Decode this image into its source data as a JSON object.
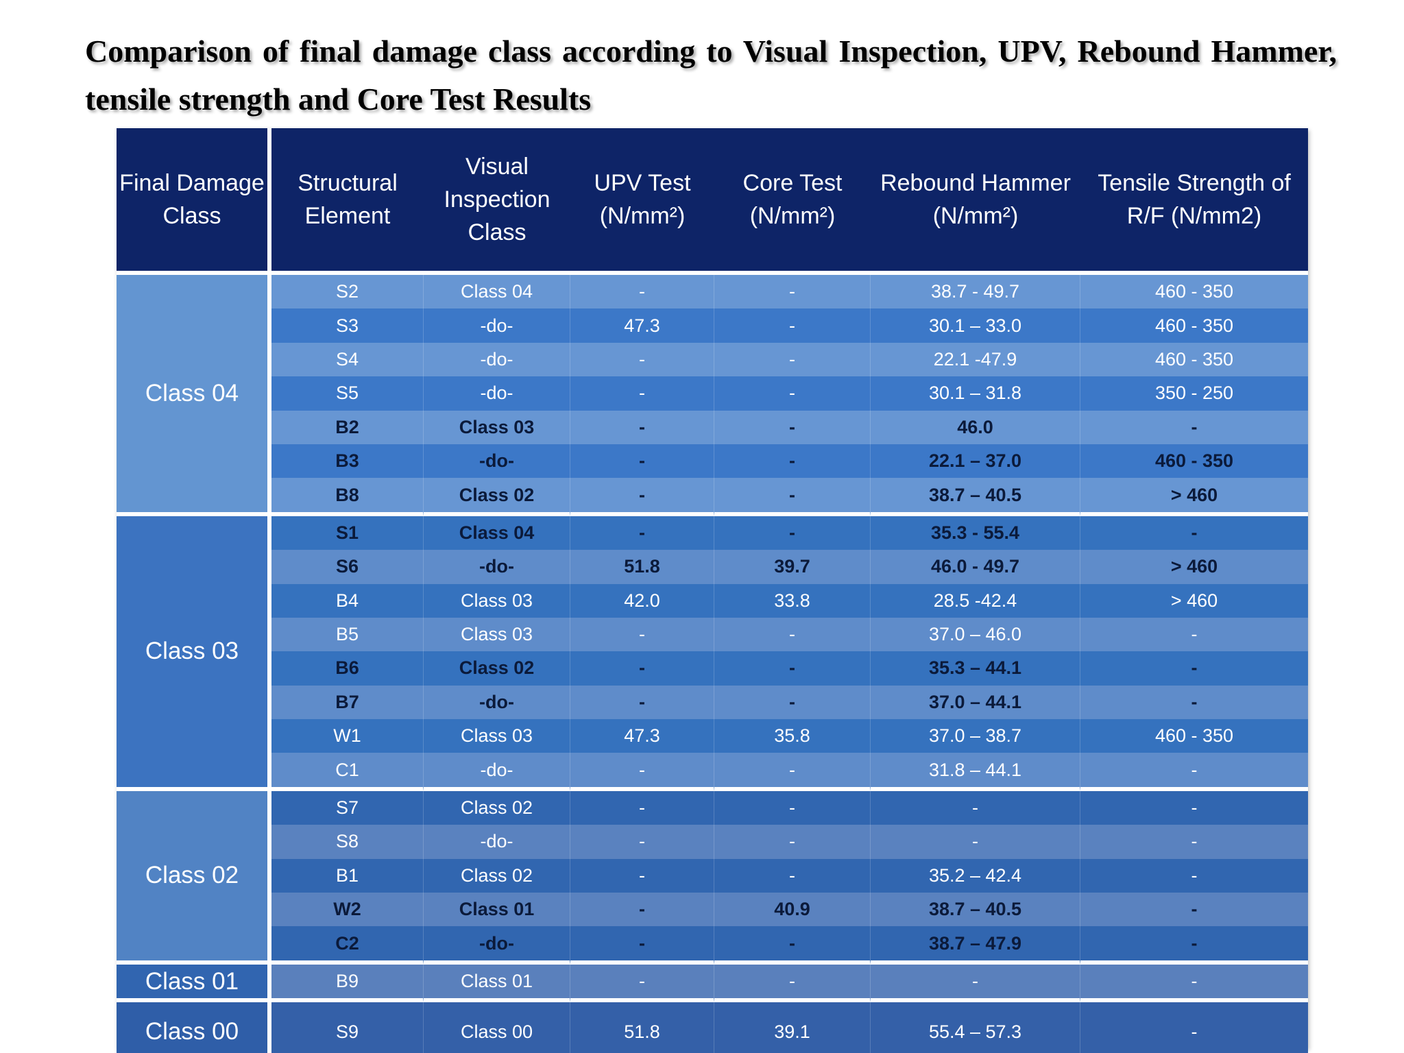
{
  "title": "Comparison of final damage class according to Visual Inspection, UPV, Rebound Hammer, tensile strength and Core Test Results",
  "headers": {
    "final_damage_class": "Final Damage Class",
    "structural_element": "Structural Element",
    "visual_inspection_class": "Visual Inspection Class",
    "upv_test": "UPV Test (N/mm²)",
    "core_test": "Core Test (N/mm²)",
    "rebound_hammer": "Rebound Hammer (N/mm²)",
    "tensile_strength": "Tensile Strength of R/F (N/mm2)"
  },
  "groups": [
    {
      "label": "Class 04",
      "rows": [
        {
          "element": "S2",
          "visual": "Class 04",
          "upv": "-",
          "core": "-",
          "rebound": "38.7 - 49.7",
          "tensile": "460 - 350",
          "bold": false
        },
        {
          "element": "S3",
          "visual": "-do-",
          "upv": "47.3",
          "core": "-",
          "rebound": "30.1 – 33.0",
          "tensile": "460 - 350",
          "bold": false
        },
        {
          "element": "S4",
          "visual": "-do-",
          "upv": "-",
          "core": "-",
          "rebound": "22.1 -47.9",
          "tensile": "460 - 350",
          "bold": false
        },
        {
          "element": "S5",
          "visual": "-do-",
          "upv": "-",
          "core": "-",
          "rebound": "30.1 – 31.8",
          "tensile": "350 - 250",
          "bold": false
        },
        {
          "element": "B2",
          "visual": "Class 03",
          "upv": "-",
          "core": "-",
          "rebound": "46.0",
          "tensile": "-",
          "bold": true
        },
        {
          "element": "B3",
          "visual": "-do-",
          "upv": "-",
          "core": "-",
          "rebound": "22.1 – 37.0",
          "tensile": "460 - 350",
          "bold": true
        },
        {
          "element": "B8",
          "visual": "Class 02",
          "upv": "-",
          "core": "-",
          "rebound": "38.7 – 40.5",
          "tensile": "> 460",
          "bold": true
        }
      ]
    },
    {
      "label": "Class 03",
      "rows": [
        {
          "element": "S1",
          "visual": "Class 04",
          "upv": "-",
          "core": "-",
          "rebound": "35.3 - 55.4",
          "tensile": "-",
          "bold": true
        },
        {
          "element": "S6",
          "visual": "-do-",
          "upv": "51.8",
          "core": "39.7",
          "rebound": "46.0 - 49.7",
          "tensile": "> 460",
          "bold": true
        },
        {
          "element": "B4",
          "visual": "Class 03",
          "upv": "42.0",
          "core": "33.8",
          "rebound": "28.5 -42.4",
          "tensile": "> 460",
          "bold": false
        },
        {
          "element": "B5",
          "visual": "Class 03",
          "upv": "-",
          "core": "-",
          "rebound": "37.0 – 46.0",
          "tensile": "-",
          "bold": false
        },
        {
          "element": "B6",
          "visual": "Class 02",
          "upv": "-",
          "core": "-",
          "rebound": "35.3 – 44.1",
          "tensile": "-",
          "bold": true
        },
        {
          "element": "B7",
          "visual": "-do-",
          "upv": "-",
          "core": "-",
          "rebound": "37.0 – 44.1",
          "tensile": "-",
          "bold": true
        },
        {
          "element": "W1",
          "visual": "Class 03",
          "upv": "47.3",
          "core": "35.8",
          "rebound": "37.0 – 38.7",
          "tensile": "460 - 350",
          "bold": false
        },
        {
          "element": "C1",
          "visual": "-do-",
          "upv": "-",
          "core": "-",
          "rebound": "31.8 – 44.1",
          "tensile": "-",
          "bold": false
        }
      ]
    },
    {
      "label": "Class 02",
      "rows": [
        {
          "element": "S7",
          "visual": "Class 02",
          "upv": "-",
          "core": "-",
          "rebound": "-",
          "tensile": "-",
          "bold": false
        },
        {
          "element": "S8",
          "visual": "-do-",
          "upv": "-",
          "core": "-",
          "rebound": "-",
          "tensile": "-",
          "bold": false
        },
        {
          "element": "B1",
          "visual": "Class 02",
          "upv": "-",
          "core": "-",
          "rebound": "35.2 – 42.4",
          "tensile": "-",
          "bold": false
        },
        {
          "element": "W2",
          "visual": "Class 01",
          "upv": "-",
          "core": "40.9",
          "rebound": "38.7 – 40.5",
          "tensile": "-",
          "bold": true
        },
        {
          "element": "C2",
          "visual": "-do-",
          "upv": "-",
          "core": "-",
          "rebound": "38.7 – 47.9",
          "tensile": "-",
          "bold": true
        }
      ]
    },
    {
      "label": "Class 01",
      "rows": [
        {
          "element": "B9",
          "visual": "Class 01",
          "upv": "-",
          "core": "-",
          "rebound": "-",
          "tensile": "-",
          "bold": false
        }
      ]
    },
    {
      "label": "Class 00",
      "rows": [
        {
          "element": "S9",
          "visual": "Class 00",
          "upv": "51.8",
          "core": "39.1",
          "rebound": "55.4 – 57.3",
          "tensile": "-",
          "bold": false
        }
      ]
    }
  ]
}
